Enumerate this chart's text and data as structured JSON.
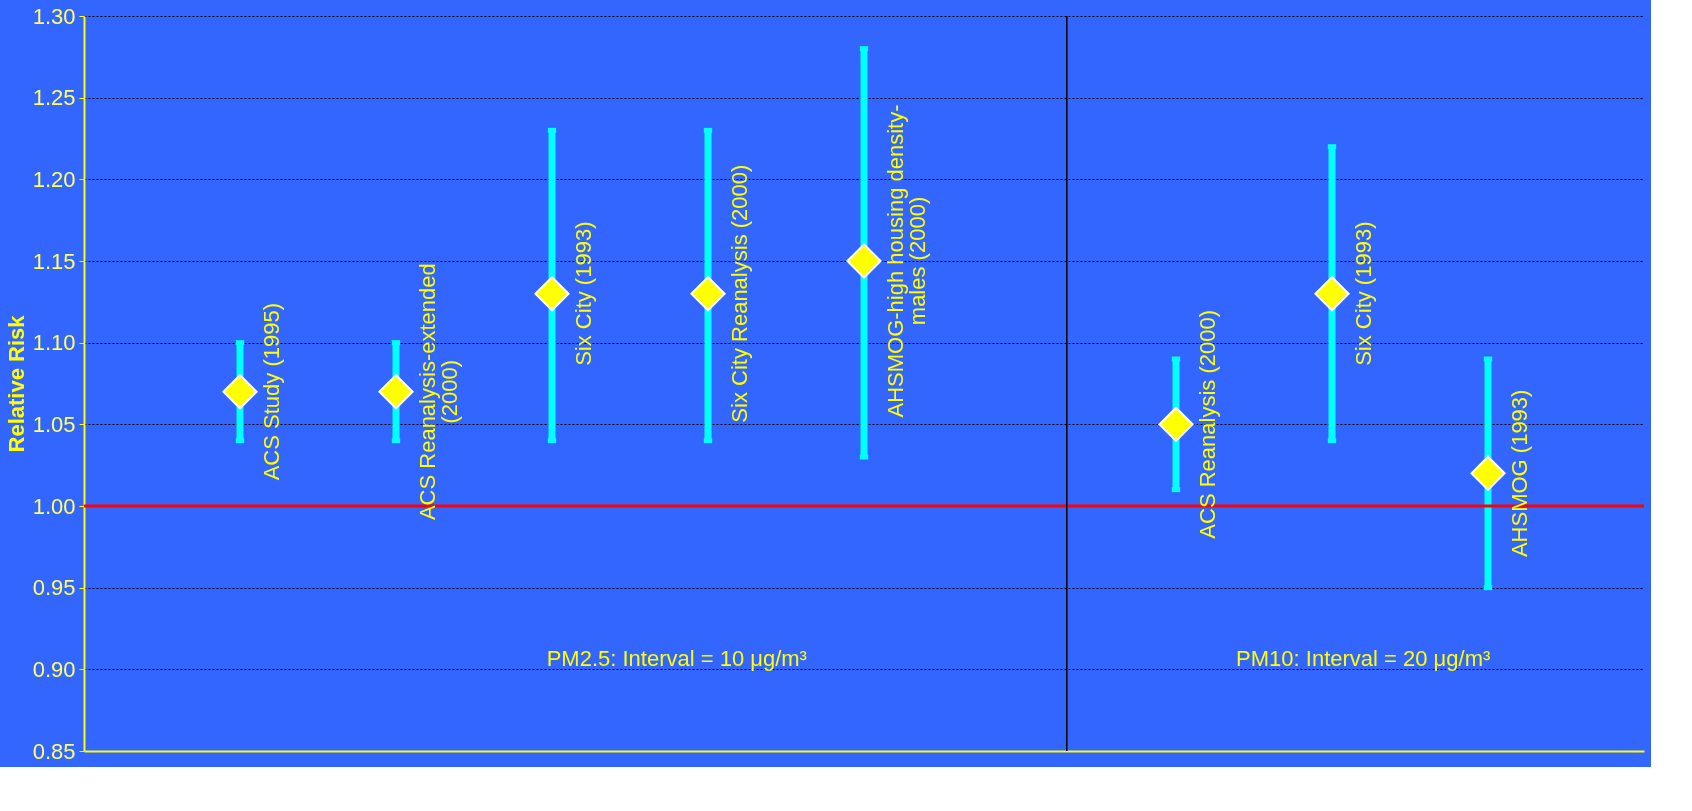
{
  "chart_data": {
    "type": "scatter",
    "ylabel": "Relative Risk",
    "categories": [
      null,
      null,
      null,
      null,
      null,
      null,
      null,
      null,
      null,
      null,
      null
    ],
    "ylim": [
      0.85,
      1.3
    ],
    "yticks": [
      {
        "value": 0.85,
        "label": "0.85"
      },
      {
        "value": 0.9,
        "label": "0.90"
      },
      {
        "value": 0.95,
        "label": "0.95"
      },
      {
        "value": 1.0,
        "label": "1.00"
      },
      {
        "value": 1.05,
        "label": "1.05"
      },
      {
        "value": 1.1,
        "label": "1.10"
      },
      {
        "value": 1.15,
        "label": "1.15"
      },
      {
        "value": 1.2,
        "label": "1.20"
      },
      {
        "value": 1.25,
        "label": "1.25"
      },
      {
        "value": 1.3,
        "label": "1.30"
      }
    ],
    "tick_labels": "y",
    "grid": "y",
    "marker": "diamond",
    "series": [
      {
        "color": "#ffff00",
        "values": [
          null,
          1.07,
          1.07,
          1.13,
          1.13,
          1.15,
          null,
          1.05,
          1.13,
          1.02,
          null
        ],
        "errors": [
          null,
          [
            1.04,
            1.1
          ],
          [
            1.04,
            1.1
          ],
          [
            1.04,
            1.23
          ],
          [
            1.04,
            1.23
          ],
          [
            1.03,
            1.28
          ],
          null,
          [
            1.01,
            1.09
          ],
          [
            1.04,
            1.22
          ],
          [
            0.95,
            1.09
          ],
          null
        ]
      }
    ],
    "ref_lines": [
      {
        "axis": "y",
        "value": 1.0,
        "color": "#ff0000"
      }
    ],
    "annotations": [
      "ACS Study (1995)",
      "ACS Reanalysis-extended\n(2000)",
      "Six City (1993)",
      "Six City Reanalysis (2000)",
      "AHSMOG-high housing density-\nmales (2000)",
      "ACS Reanalysis (2000)",
      "Six City (1993)",
      "AHSMOG (1993)",
      "PM2.5: Interval = 10 μg/m³",
      "PM10: Interval = 20 μg/m³"
    ]
  }
}
